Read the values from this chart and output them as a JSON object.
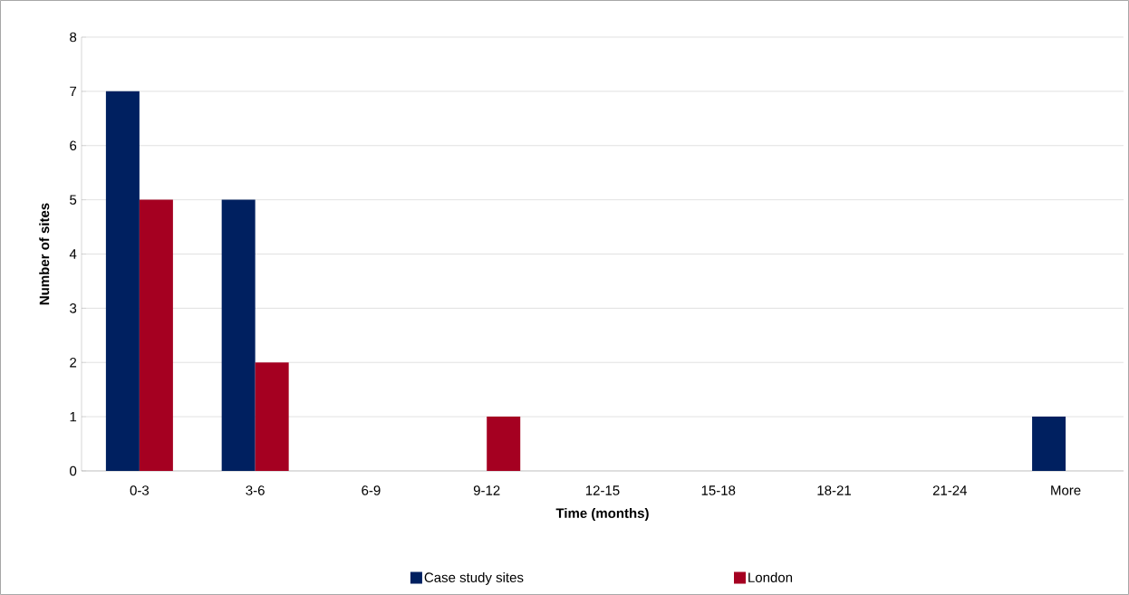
{
  "chart_data": {
    "type": "bar",
    "xlabel": "Time (months)",
    "ylabel": "Number of sites",
    "categories": [
      "0-3",
      "3-6",
      "6-9",
      "9-12",
      "12-15",
      "15-18",
      "18-21",
      "21-24",
      "More"
    ],
    "series": [
      {
        "name": "Case study sites",
        "color": "#002060",
        "values": [
          7,
          5,
          0,
          0,
          0,
          0,
          0,
          0,
          1
        ]
      },
      {
        "name": "London",
        "color": "#A50021",
        "values": [
          5,
          2,
          0,
          1,
          0,
          0,
          0,
          0,
          0
        ]
      }
    ],
    "ylim": [
      0,
      8
    ],
    "yticks": [
      0,
      1,
      2,
      3,
      4,
      5,
      6,
      7,
      8
    ],
    "grid": "y",
    "legend": "bottom"
  }
}
